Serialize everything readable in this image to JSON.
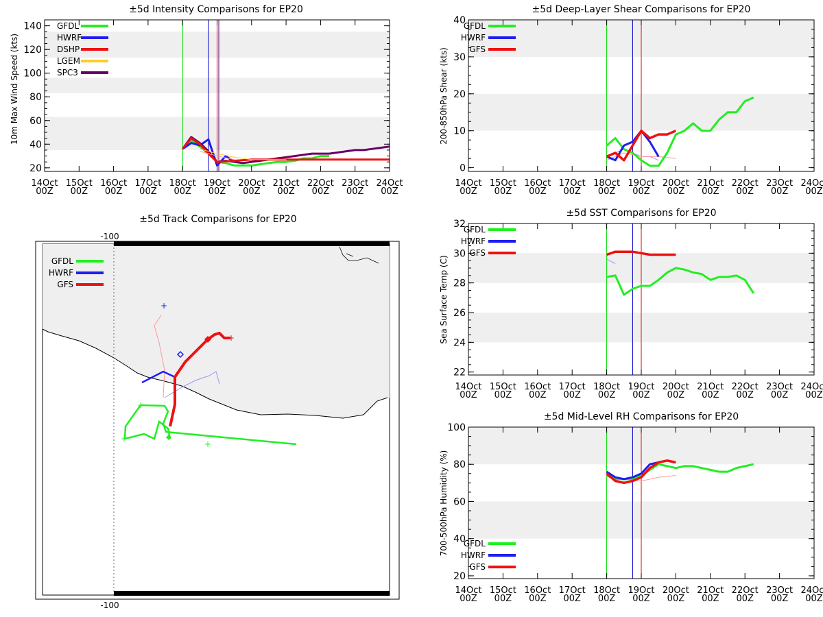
{
  "chart_data": {
    "intensity": {
      "type": "line",
      "title": "±5d Intensity Comparisons for EP20",
      "ylabel": "10m Max Wind Speed (kts)",
      "ylim": [
        17,
        145
      ],
      "xlim": [
        0,
        10
      ],
      "yticks": [
        20,
        40,
        60,
        80,
        100,
        120,
        140
      ],
      "xticks": [
        "14Oct",
        "15Oct",
        "16Oct",
        "17Oct",
        "18Oct",
        "19Oct",
        "20Oct",
        "21Oct",
        "22Oct",
        "23Oct",
        "24Oct"
      ],
      "xtick_sub": "00Z",
      "bands": [
        [
          35,
          63
        ],
        [
          83,
          96
        ],
        [
          113,
          135
        ]
      ],
      "vlines": [
        {
          "x": 4.0,
          "color": "#00dd00"
        },
        {
          "x": 4.75,
          "color": "#0000cc"
        },
        {
          "x": 5.0,
          "color": "#ee0000"
        },
        {
          "x": 5.05,
          "color": "#660066"
        }
      ],
      "legend": [
        {
          "name": "GFDL",
          "color": "#22ee22"
        },
        {
          "name": "HWRF",
          "color": "#1e1ef0"
        },
        {
          "name": "DSHP",
          "color": "#ee1111"
        },
        {
          "name": "LGEM",
          "color": "#ffcc22"
        },
        {
          "name": "SPC3",
          "color": "#660066"
        }
      ],
      "series": [
        {
          "name": "GFDL",
          "color": "#22ee22",
          "width": 3,
          "x": [
            4.0,
            4.25,
            4.5,
            4.75,
            5.0,
            5.25,
            5.5,
            5.75,
            6.0,
            6.25,
            6.5,
            6.75,
            7.0,
            7.25,
            7.5,
            7.75,
            8.0,
            8.25
          ],
          "y": [
            36,
            43,
            38,
            32,
            25,
            24,
            22,
            22,
            22,
            23,
            24,
            25,
            25,
            26,
            28,
            28,
            30,
            30
          ]
        },
        {
          "name": "HWRF",
          "color": "#1e1ef0",
          "width": 3,
          "x": [
            4.0,
            4.25,
            4.5,
            4.75,
            5.0,
            5.25,
            5.5
          ],
          "y": [
            36,
            41,
            39,
            44,
            22,
            30,
            25
          ]
        },
        {
          "name": "SPC3",
          "color": "#660066",
          "width": 3,
          "x": [
            4.0,
            4.25,
            4.5,
            4.75,
            5.0,
            5.25,
            5.5,
            5.75,
            6.0,
            6.25,
            6.5,
            6.75,
            7.0,
            7.25,
            7.5,
            7.75,
            8.0,
            8.25,
            8.5,
            8.75,
            9.0,
            9.25,
            9.5,
            9.75,
            10.0
          ],
          "y": [
            36,
            46,
            41,
            34,
            25,
            26,
            25,
            24,
            25,
            26,
            27,
            28,
            29,
            30,
            31,
            32,
            32,
            32,
            33,
            34,
            35,
            35,
            36,
            37,
            38
          ]
        },
        {
          "name": "DSHP",
          "color": "#ee1111",
          "width": 3,
          "x": [
            4.0,
            4.25,
            4.5,
            4.75,
            5.0,
            5.5,
            6.0,
            7.0,
            8.0,
            9.0,
            10.0
          ],
          "y": [
            36,
            45,
            40,
            32,
            25,
            26,
            27,
            27,
            27,
            27,
            27
          ]
        },
        {
          "name": "LGEM",
          "color": "#ffcc22",
          "width": 1,
          "x": [
            4.5,
            5.0,
            5.5,
            6.0,
            6.5,
            7.0
          ],
          "y": [
            36,
            32,
            29,
            27,
            27,
            27
          ]
        },
        {
          "name": "DSHP-prior",
          "color": "#ff9999",
          "width": 1,
          "x": [
            4.5,
            5.0,
            5.5
          ],
          "y": [
            34,
            30,
            27
          ]
        }
      ]
    },
    "shear": {
      "type": "line",
      "title": "±5d Deep-Layer Shear Comparisons for EP20",
      "ylabel": "200-850hPa Shear (kts)",
      "ylim": [
        -1,
        40
      ],
      "xlim": [
        0,
        10
      ],
      "yticks": [
        0,
        10,
        20,
        30,
        40
      ],
      "xticks": [
        "14Oct",
        "15Oct",
        "16Oct",
        "17Oct",
        "18Oct",
        "19Oct",
        "20Oct",
        "21Oct",
        "22Oct",
        "23Oct",
        "24Oct"
      ],
      "xtick_sub": "00Z",
      "bands": [
        [
          10,
          20
        ],
        [
          30,
          40
        ]
      ],
      "vlines": [
        {
          "x": 4.0,
          "color": "#00dd00"
        },
        {
          "x": 4.75,
          "color": "#0000cc"
        },
        {
          "x": 5.0,
          "color": "#ee0000"
        }
      ],
      "legend": [
        {
          "name": "GFDL",
          "color": "#22ee22"
        },
        {
          "name": "HWRF",
          "color": "#1e1ef0"
        },
        {
          "name": "GFS",
          "color": "#ee1111"
        }
      ],
      "series": [
        {
          "name": "HWRF-prior",
          "color": "#9999ee",
          "width": 1,
          "x": [
            4.0,
            4.25,
            4.5,
            4.75,
            5.0,
            5.25,
            5.5
          ],
          "y": [
            3,
            4,
            5,
            4,
            3,
            3,
            2
          ]
        },
        {
          "name": "GFS-prior",
          "color": "#ff9999",
          "width": 1,
          "x": [
            4.0,
            4.5,
            5.0,
            5.5,
            6.0
          ],
          "y": [
            2,
            4,
            3,
            3,
            2.5
          ]
        },
        {
          "name": "GFDL",
          "color": "#22ee22",
          "width": 3,
          "x": [
            4.0,
            4.25,
            4.5,
            4.75,
            5.0,
            5.25,
            5.5,
            5.75,
            6.0,
            6.25,
            6.5,
            6.75,
            7.0,
            7.25,
            7.5,
            7.75,
            8.0,
            8.25
          ],
          "y": [
            6,
            8,
            5,
            4,
            2,
            0.5,
            0.5,
            4,
            9,
            10,
            12,
            10,
            10,
            13,
            15,
            15,
            18,
            19
          ]
        },
        {
          "name": "HWRF",
          "color": "#1e1ef0",
          "width": 3,
          "x": [
            4.0,
            4.25,
            4.5,
            4.75,
            5.0,
            5.25,
            5.5
          ],
          "y": [
            3,
            2,
            6,
            7,
            10,
            7,
            3
          ]
        },
        {
          "name": "GFS",
          "color": "#ee1111",
          "width": 3.5,
          "x": [
            4.0,
            4.25,
            4.5,
            4.75,
            5.0,
            5.25,
            5.5,
            5.75,
            6.0
          ],
          "y": [
            3,
            4,
            2,
            6,
            10,
            8,
            9,
            9,
            10
          ]
        }
      ]
    },
    "track": {
      "type": "scatter",
      "title": "±5d Track Comparisons for EP20",
      "lon_label_top": "-100",
      "lon_label_bottom": "-100",
      "legend": [
        {
          "name": "GFDL",
          "color": "#22ee22"
        },
        {
          "name": "HWRF",
          "color": "#1e1ef0"
        },
        {
          "name": "GFS",
          "color": "#ee1111"
        }
      ]
    },
    "sst": {
      "type": "line",
      "title": "±5d SST Comparisons for EP20",
      "ylabel": "Sea Surface Temp (C)",
      "ylim": [
        21.8,
        32
      ],
      "xlim": [
        0,
        10
      ],
      "yticks": [
        22,
        24,
        26,
        28,
        30,
        32
      ],
      "xticks": [
        "14Oct",
        "15Oct",
        "16Oct",
        "17Oct",
        "18Oct",
        "19Oct",
        "20Oct",
        "21Oct",
        "22Oct",
        "23Oct",
        "24Oct"
      ],
      "xtick_sub": "00Z",
      "bands": [
        [
          24,
          26
        ],
        [
          28,
          30
        ]
      ],
      "vlines": [
        {
          "x": 4.0,
          "color": "#00dd00"
        },
        {
          "x": 4.75,
          "color": "#0000cc"
        },
        {
          "x": 5.0,
          "color": "#ee0000"
        }
      ],
      "legend": [
        {
          "name": "GFDL",
          "color": "#22ee22"
        },
        {
          "name": "HWRF",
          "color": "#1e1ef0"
        },
        {
          "name": "GFS",
          "color": "#ee1111"
        }
      ],
      "series": [
        {
          "name": "HWRF-prior",
          "color": "#9999ee",
          "width": 1,
          "x": [
            4.0,
            4.25
          ],
          "y": [
            29.6,
            29.3
          ]
        },
        {
          "name": "GFDL",
          "color": "#22ee22",
          "width": 3,
          "x": [
            4.0,
            4.25,
            4.5,
            4.75,
            5.0,
            5.25,
            5.5,
            5.75,
            6.0,
            6.25,
            6.5,
            6.75,
            7.0,
            7.25,
            7.5,
            7.75,
            8.0,
            8.25
          ],
          "y": [
            28.4,
            28.5,
            27.2,
            27.6,
            27.8,
            27.8,
            28.2,
            28.7,
            29.0,
            28.9,
            28.7,
            28.6,
            28.2,
            28.4,
            28.4,
            28.5,
            28.2,
            27.3
          ]
        },
        {
          "name": "GFS",
          "color": "#ee1111",
          "width": 3.5,
          "x": [
            4.0,
            4.25,
            4.5,
            4.75,
            5.0,
            5.25,
            5.5,
            5.75,
            6.0
          ],
          "y": [
            29.9,
            30.1,
            30.1,
            30.1,
            30.0,
            29.9,
            29.9,
            29.9,
            29.9
          ]
        }
      ]
    },
    "rh": {
      "type": "line",
      "title": "±5d Mid-Level RH Comparisons for EP20",
      "ylabel": "700-500hPa Humidity (%)",
      "ylim": [
        18.5,
        100
      ],
      "xlim": [
        0,
        10
      ],
      "yticks": [
        20,
        40,
        60,
        80,
        100
      ],
      "xticks": [
        "14Oct",
        "15Oct",
        "16Oct",
        "17Oct",
        "18Oct",
        "19Oct",
        "20Oct",
        "21Oct",
        "22Oct",
        "23Oct",
        "24Oct"
      ],
      "xtick_sub": "00Z",
      "bands": [
        [
          40,
          60
        ],
        [
          80,
          100
        ]
      ],
      "vlines": [
        {
          "x": 4.0,
          "color": "#00dd00"
        },
        {
          "x": 4.75,
          "color": "#0000cc"
        },
        {
          "x": 5.0,
          "color": "#ee0000"
        }
      ],
      "legend": [
        {
          "name": "GFDL",
          "color": "#22ee22"
        },
        {
          "name": "HWRF",
          "color": "#1e1ef0"
        },
        {
          "name": "GFS",
          "color": "#ee1111"
        }
      ],
      "series": [
        {
          "name": "GFS-prior",
          "color": "#ff9999",
          "width": 1,
          "x": [
            4.0,
            4.5,
            5.0,
            5.5,
            6.0
          ],
          "y": [
            74,
            72,
            71,
            73,
            74
          ]
        },
        {
          "name": "GFDL",
          "color": "#22ee22",
          "width": 3,
          "x": [
            4.0,
            4.25,
            4.5,
            4.75,
            5.0,
            5.25,
            5.5,
            5.75,
            6.0,
            6.25,
            6.5,
            6.75,
            7.0,
            7.25,
            7.5,
            7.75,
            8.0,
            8.25
          ],
          "y": [
            74,
            72,
            72,
            72,
            74,
            77,
            80,
            79,
            78,
            79,
            79,
            78,
            77,
            76,
            76,
            78,
            79,
            80
          ]
        },
        {
          "name": "HWRF",
          "color": "#1e1ef0",
          "width": 3,
          "x": [
            4.0,
            4.25,
            4.5,
            4.75,
            5.0,
            5.25,
            5.5
          ],
          "y": [
            76,
            73,
            72,
            73,
            75,
            80,
            81
          ]
        },
        {
          "name": "GFS",
          "color": "#ee1111",
          "width": 3.5,
          "x": [
            4.0,
            4.25,
            4.5,
            4.75,
            5.0,
            5.25,
            5.5,
            5.75,
            6.0
          ],
          "y": [
            75,
            71,
            70,
            71,
            73,
            78,
            81,
            82,
            81
          ]
        }
      ]
    }
  }
}
